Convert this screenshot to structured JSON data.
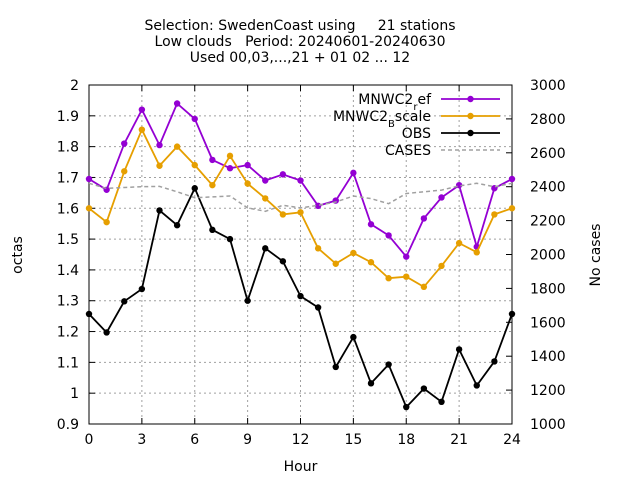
{
  "chart_data": {
    "type": "line",
    "title_lines": [
      "Selection: SwedenCoast using     21 stations",
      "Low clouds   Period: 20240601-20240630",
      "Used 00,03,...,21 + 01 02 ... 12"
    ],
    "xlabel": "Hour",
    "ylabel": "octas",
    "y2label": "No cases",
    "xlim": [
      0,
      24
    ],
    "ylim": [
      0.9,
      2.0
    ],
    "y2lim": [
      1000,
      3000
    ],
    "xticks": [
      0,
      3,
      6,
      9,
      12,
      15,
      18,
      21,
      24
    ],
    "yticks": [
      0.9,
      1.0,
      1.1,
      1.2,
      1.3,
      1.4,
      1.5,
      1.6,
      1.7,
      1.8,
      1.9,
      2.0
    ],
    "ytick_labels": [
      "0.9",
      "1",
      "1.1",
      "1.2",
      "1.3",
      "1.4",
      "1.5",
      "1.6",
      "1.7",
      "1.8",
      "1.9",
      "2"
    ],
    "y2ticks": [
      1000,
      1200,
      1400,
      1600,
      1800,
      2000,
      2200,
      2400,
      2600,
      2800,
      3000
    ],
    "grid": true,
    "legend_position": "top-right",
    "x": [
      0,
      1,
      2,
      3,
      4,
      5,
      6,
      7,
      8,
      9,
      10,
      11,
      12,
      13,
      14,
      15,
      16,
      17,
      18,
      19,
      20,
      21,
      22,
      23,
      24
    ],
    "series": [
      {
        "name": "MNWC2_ref",
        "legend_main": "MNWC2",
        "legend_sub": "r",
        "legend_tail": "ef",
        "color": "#9400d3",
        "marker": true,
        "axis": "y1",
        "values": [
          1.695,
          1.66,
          1.81,
          1.92,
          1.805,
          1.94,
          1.89,
          1.757,
          1.73,
          1.74,
          1.69,
          1.71,
          1.69,
          1.608,
          1.625,
          1.715,
          1.548,
          1.512,
          1.443,
          1.567,
          1.635,
          1.675,
          1.475,
          1.665,
          1.695
        ]
      },
      {
        "name": "MNWC2_Bscale",
        "legend_main": "MNWC2",
        "legend_sub": "B",
        "legend_tail": "scale",
        "color": "#e69f00",
        "marker": true,
        "axis": "y1",
        "values": [
          1.6,
          1.555,
          1.72,
          1.855,
          1.738,
          1.8,
          1.74,
          1.675,
          1.77,
          1.68,
          1.632,
          1.58,
          1.587,
          1.47,
          1.42,
          1.455,
          1.425,
          1.373,
          1.378,
          1.345,
          1.413,
          1.487,
          1.457,
          1.58,
          1.6
        ]
      },
      {
        "name": "OBS",
        "legend_main": "OBS",
        "legend_sub": "",
        "legend_tail": "",
        "color": "#000000",
        "marker": true,
        "axis": "y1",
        "values": [
          1.257,
          1.197,
          1.298,
          1.338,
          1.593,
          1.545,
          1.665,
          1.53,
          1.5,
          1.3,
          1.47,
          1.428,
          1.315,
          1.278,
          1.085,
          1.182,
          1.032,
          1.093,
          0.955,
          1.015,
          0.972,
          1.142,
          1.025,
          1.103,
          1.257
        ]
      },
      {
        "name": "CASES",
        "legend_main": "CASES",
        "legend_sub": "",
        "legend_tail": "",
        "color": "#a0a0a0",
        "dashed": true,
        "marker": false,
        "axis": "y2",
        "values": [
          2420,
          2390,
          2395,
          2400,
          2402,
          2370,
          2335,
          2340,
          2345,
          2275,
          2255,
          2290,
          2275,
          2290,
          2310,
          2345,
          2330,
          2300,
          2360,
          2370,
          2380,
          2405,
          2420,
          2400,
          2420
        ]
      }
    ]
  }
}
